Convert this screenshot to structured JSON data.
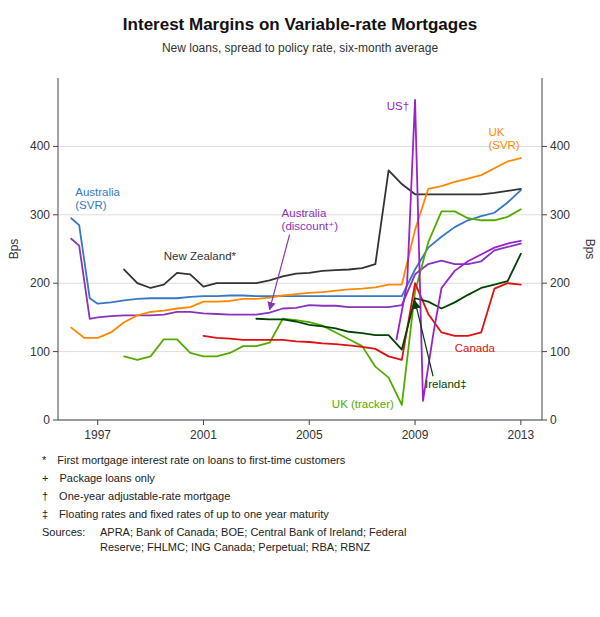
{
  "chart_data": {
    "type": "line",
    "title": "Interest Margins on Variable-rate Mortgages",
    "subtitle": "New loans, spread to policy rate, six-month average",
    "ylabel": "Bps",
    "y2label": "Bps",
    "xlim": [
      1995.5,
      2013.8
    ],
    "xticks": [
      1997,
      2001,
      2005,
      2009,
      2013
    ],
    "ylim": [
      0,
      500
    ],
    "yticks": [
      0,
      100,
      200,
      300,
      400
    ],
    "y2lim": [
      0,
      500
    ],
    "y2ticks": [
      0,
      100,
      200,
      300,
      400
    ],
    "grid": true,
    "footnotes": [
      "* First mortgage interest rate on loans to first-time customers",
      "+ Package loans only",
      "† One-year adjustable-rate mortgage",
      "‡ Floating rates and fixed rates of up to one year maturity"
    ],
    "sources_label": "Sources:",
    "sources_text": "APRA; Bank of Canada; BOE; Central Bank of Ireland; Federal\nReserve; FHLMC; ING Canada; Perpetual; RBA; RBNZ",
    "series": [
      {
        "name": "Australia\n(SVR)",
        "color": "#3777c4",
        "x": [
          1996.0,
          1996.3,
          1996.7,
          1997.0,
          1997.5,
          1998.0,
          1998.5,
          1999.0,
          1999.5,
          2000.0,
          2000.5,
          2001.0,
          2001.5,
          2002.0,
          2002.5,
          2003.0,
          2003.5,
          2004.0,
          2004.5,
          2005.0,
          2005.5,
          2006.0,
          2006.5,
          2007.0,
          2007.5,
          2008.0,
          2008.5,
          2009.0,
          2009.5,
          2010.0,
          2010.5,
          2011.0,
          2011.5,
          2012.0,
          2012.5,
          2013.0
        ],
        "values": [
          295,
          285,
          178,
          170,
          172,
          175,
          177,
          178,
          178,
          178,
          180,
          181,
          181,
          182,
          182,
          181,
          181,
          181,
          181,
          181,
          181,
          181,
          181,
          181,
          181,
          181,
          181,
          220,
          252,
          268,
          282,
          292,
          298,
          303,
          318,
          336
        ]
      },
      {
        "name": "Australia\n(discount⁺)",
        "color": "#8833bb",
        "x": [
          1996.0,
          1996.3,
          1996.7,
          1997.0,
          1997.5,
          1998.0,
          1998.5,
          1999.0,
          1999.5,
          2000.0,
          2000.5,
          2001.0,
          2001.5,
          2002.0,
          2002.5,
          2003.0,
          2003.5,
          2004.0,
          2004.5,
          2005.0,
          2005.5,
          2006.0,
          2006.5,
          2007.0,
          2007.5,
          2008.0,
          2008.5,
          2009.0,
          2009.5,
          2010.0,
          2010.5,
          2011.0,
          2011.5,
          2012.0,
          2012.5,
          2013.0
        ],
        "values": [
          265,
          255,
          148,
          150,
          152,
          153,
          153,
          153,
          154,
          158,
          158,
          156,
          155,
          154,
          154,
          154,
          157,
          163,
          164,
          168,
          167,
          167,
          165,
          165,
          165,
          165,
          168,
          213,
          228,
          233,
          228,
          228,
          232,
          248,
          253,
          258
        ]
      },
      {
        "name": "New Zealand*",
        "color": "#333333",
        "x": [
          1998.0,
          1998.5,
          1999.0,
          1999.5,
          2000.0,
          2000.5,
          2001.0,
          2001.5,
          2002.0,
          2002.5,
          2003.0,
          2003.5,
          2004.0,
          2004.5,
          2005.0,
          2005.5,
          2006.0,
          2006.5,
          2007.0,
          2007.5,
          2008.0,
          2008.5,
          2009.0,
          2009.5,
          2010.0,
          2010.5,
          2011.0,
          2011.5,
          2012.0,
          2012.5,
          2013.0
        ],
        "values": [
          220,
          200,
          193,
          198,
          215,
          213,
          195,
          200,
          200,
          200,
          200,
          204,
          210,
          214,
          215,
          218,
          219,
          220,
          222,
          228,
          365,
          345,
          330,
          330,
          330,
          330,
          330,
          330,
          332,
          335,
          338
        ]
      },
      {
        "name": "UK\n(SVR)",
        "color": "#ff8800",
        "x": [
          1996.0,
          1996.5,
          1997.0,
          1997.5,
          1998.0,
          1998.5,
          1999.0,
          1999.5,
          2000.0,
          2000.5,
          2001.0,
          2001.5,
          2002.0,
          2002.5,
          2003.0,
          2003.5,
          2004.0,
          2004.5,
          2005.0,
          2005.5,
          2006.0,
          2006.5,
          2007.0,
          2007.5,
          2008.0,
          2008.5,
          2009.0,
          2009.5,
          2010.0,
          2010.5,
          2011.0,
          2011.5,
          2012.0,
          2012.5,
          2013.0
        ],
        "values": [
          135,
          120,
          120,
          128,
          143,
          153,
          158,
          160,
          163,
          165,
          173,
          173,
          174,
          177,
          177,
          179,
          182,
          184,
          186,
          187,
          189,
          191,
          192,
          194,
          198,
          198,
          278,
          338,
          342,
          348,
          353,
          358,
          368,
          378,
          383
        ]
      },
      {
        "name": "UK (tracker)",
        "color": "#55aa00",
        "x": [
          1998.0,
          1998.5,
          1999.0,
          1999.5,
          2000.0,
          2000.5,
          2001.0,
          2001.5,
          2002.0,
          2002.5,
          2003.0,
          2003.5,
          2004.0,
          2004.5,
          2005.0,
          2005.5,
          2006.0,
          2006.5,
          2007.0,
          2007.5,
          2008.0,
          2008.5,
          2009.0,
          2009.5,
          2010.0,
          2010.5,
          2011.0,
          2011.5,
          2012.0,
          2012.5,
          2013.0
        ],
        "values": [
          93,
          88,
          93,
          118,
          118,
          98,
          93,
          93,
          98,
          108,
          108,
          113,
          148,
          146,
          143,
          138,
          128,
          118,
          108,
          78,
          62,
          22,
          188,
          260,
          305,
          305,
          295,
          292,
          292,
          297,
          308
        ]
      },
      {
        "name": "Canada",
        "color": "#dd1111",
        "x": [
          2001.0,
          2001.5,
          2002.0,
          2002.5,
          2003.0,
          2003.5,
          2004.0,
          2004.5,
          2005.0,
          2005.5,
          2006.0,
          2006.5,
          2007.0,
          2007.5,
          2008.0,
          2008.5,
          2009.0,
          2009.5,
          2010.0,
          2010.5,
          2011.0,
          2011.5,
          2012.0,
          2012.5,
          2013.0
        ],
        "values": [
          123,
          120,
          119,
          117,
          117,
          117,
          117,
          115,
          114,
          112,
          111,
          109,
          107,
          104,
          93,
          88,
          200,
          155,
          128,
          123,
          123,
          128,
          192,
          200,
          198
        ]
      },
      {
        "name": "Ireland‡",
        "color": "#004400",
        "x": [
          2003.0,
          2003.5,
          2004.0,
          2004.5,
          2005.0,
          2005.5,
          2006.0,
          2006.5,
          2007.0,
          2007.5,
          2008.0,
          2008.5,
          2009.0,
          2009.5,
          2010.0,
          2010.5,
          2011.0,
          2011.5,
          2012.0,
          2012.5,
          2013.0
        ],
        "values": [
          148,
          147,
          147,
          144,
          139,
          137,
          134,
          129,
          127,
          124,
          124,
          103,
          178,
          173,
          163,
          172,
          183,
          193,
          198,
          203,
          243
        ]
      },
      {
        "name": "US†",
        "color": "#9922cc",
        "x": [
          2008.3,
          2008.7,
          2009.0,
          2009.3,
          2009.7,
          2010.0,
          2010.5,
          2011.0,
          2011.5,
          2012.0,
          2012.5,
          2013.0
        ],
        "values": [
          118,
          200,
          468,
          28,
          128,
          193,
          218,
          232,
          242,
          252,
          258,
          262
        ]
      }
    ]
  }
}
